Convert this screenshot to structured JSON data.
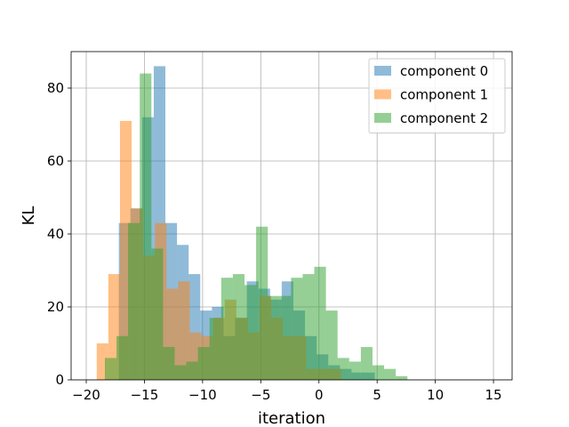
{
  "chart_data": {
    "type": "bar",
    "subtype": "overlapping-histogram",
    "title": "",
    "xlabel": "iteration",
    "ylabel": "KL",
    "xlim": [
      -21.3,
      16.6
    ],
    "ylim": [
      0,
      90
    ],
    "xticks": [
      -20,
      -15,
      -10,
      -5,
      0,
      5,
      10,
      15
    ],
    "yticks": [
      0,
      20,
      40,
      60,
      80
    ],
    "grid": true,
    "legend_position": "top-right",
    "bar_alpha": 0.5,
    "series": [
      {
        "name": "component 0",
        "color": "#1f77b4",
        "bin_start": -17.2,
        "bin_width": 1.0,
        "values": [
          43,
          47,
          72,
          86,
          43,
          37,
          29,
          19,
          20,
          12,
          17,
          27,
          25,
          22,
          27,
          19,
          12,
          7,
          4,
          3,
          2,
          2
        ]
      },
      {
        "name": "component 1",
        "color": "#ff7f0e",
        "bin_start": -19.1,
        "bin_width": 1.0,
        "values": [
          10,
          29,
          71,
          47,
          34,
          43,
          25,
          27,
          13,
          12,
          17,
          22,
          17,
          13,
          23,
          17,
          12,
          12,
          3,
          3,
          3
        ]
      },
      {
        "name": "component 2",
        "color": "#2ca02c",
        "bin_start": -18.4,
        "bin_width": 1.0,
        "values": [
          6,
          12,
          43,
          84,
          36,
          9,
          4,
          5,
          9,
          17,
          28,
          29,
          26,
          42,
          23,
          23,
          28,
          29,
          31,
          19,
          6,
          5,
          9,
          4,
          3,
          1
        ]
      }
    ]
  }
}
